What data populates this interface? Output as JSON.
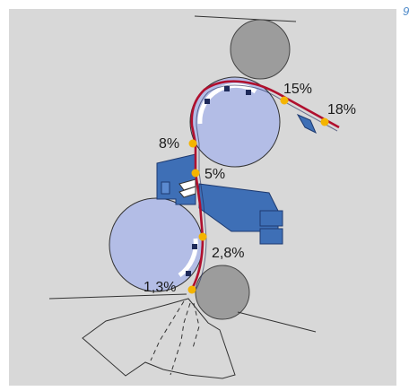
{
  "edge_label": "9",
  "percent_labels": {
    "p15": "15%",
    "p18": "18%",
    "p8": "8%",
    "p5": "5%",
    "p28": "2,8%",
    "p13": "1,3%"
  },
  "colors": {
    "background": "#d8d8d8",
    "large_roll": "#b3bde6",
    "small_roll": "#9c9c9c",
    "web_line": "#b0102e",
    "dot": "#f4b400",
    "equipment_blue": "#3e6fb6",
    "roll_felt": "#1e2a5a"
  },
  "icons": [
    "roll-icon",
    "suction-box-icon",
    "press-shoe-icon"
  ]
}
